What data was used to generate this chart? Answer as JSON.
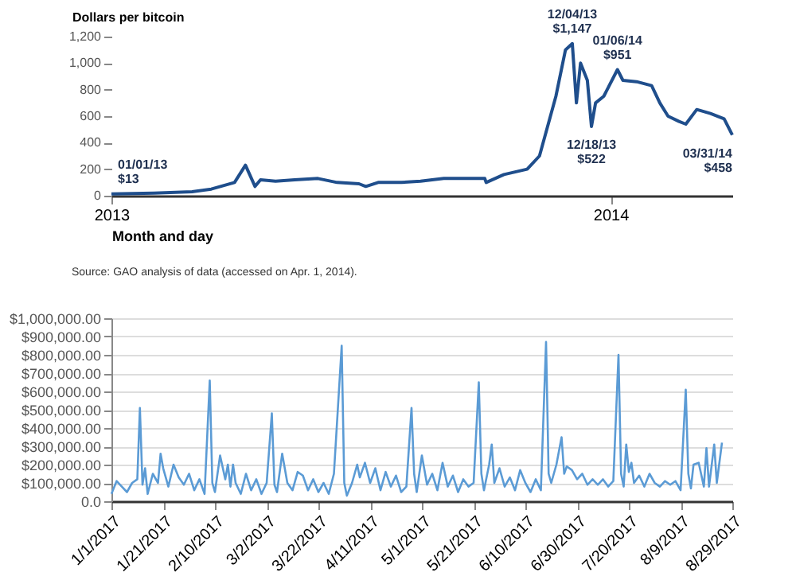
{
  "chart_data": [
    {
      "type": "line",
      "ylabel": "Dollars per bitcoin",
      "xlabel": "Month and day",
      "x": [
        "2013-01-01",
        "2013-02-01",
        "2013-03-01",
        "2013-03-15",
        "2013-04-01",
        "2013-04-09",
        "2013-04-16",
        "2013-04-20",
        "2013-05-01",
        "2013-05-15",
        "2013-06-01",
        "2013-06-15",
        "2013-07-01",
        "2013-07-06",
        "2013-07-15",
        "2013-08-01",
        "2013-08-15",
        "2013-09-01",
        "2013-09-15",
        "2013-10-01",
        "2013-10-02",
        "2013-10-15",
        "2013-11-01",
        "2013-11-10",
        "2013-11-18",
        "2013-11-22",
        "2013-11-29",
        "2013-12-04",
        "2013-12-07",
        "2013-12-10",
        "2013-12-15",
        "2013-12-18",
        "2013-12-21",
        "2013-12-27",
        "2014-01-06",
        "2014-01-10",
        "2014-01-20",
        "2014-01-31",
        "2014-02-06",
        "2014-02-12",
        "2014-02-20",
        "2014-02-25",
        "2014-03-05",
        "2014-03-15",
        "2014-03-25",
        "2014-03-31"
      ],
      "series": [
        {
          "color": "#1f4e8c",
          "values": [
            13,
            20,
            30,
            50,
            100,
            230,
            70,
            120,
            110,
            120,
            130,
            100,
            90,
            70,
            100,
            100,
            110,
            130,
            130,
            130,
            100,
            160,
            200,
            300,
            600,
            750,
            1100,
            1147,
            700,
            1000,
            870,
            522,
            700,
            750,
            951,
            870,
            860,
            830,
            700,
            600,
            560,
            540,
            650,
            620,
            580,
            458
          ]
        }
      ],
      "xlim": [
        "2013-01-01",
        "2014-03-31"
      ],
      "xticks": [
        {
          "value": "2013-01-01",
          "label": "2013"
        },
        {
          "value": "2014-01-01",
          "label": "2014"
        }
      ],
      "ylim": [
        0,
        1200
      ],
      "yticks": [
        0,
        200,
        400,
        600,
        800,
        {
          "value": 1000,
          "label": "1,000"
        },
        {
          "value": 1200,
          "label": "1,200"
        }
      ],
      "grid": false,
      "annotations": [
        {
          "text": "01/01/13\n$13",
          "x": "2013-01-01",
          "y": 13
        },
        {
          "text": "12/04/13\n$1,147",
          "x": "2013-12-04",
          "y": 1147
        },
        {
          "text": "12/18/13\n$522",
          "x": "2013-12-18",
          "y": 522
        },
        {
          "text": "01/06/14\n$951",
          "x": "2014-01-06",
          "y": 951
        },
        {
          "text": "03/31/14\n$458",
          "x": "2014-03-31",
          "y": 458
        },
        "Source: GAO analysis of data (accessed on Apr. 1, 2014)."
      ]
    },
    {
      "type": "line",
      "x": [
        "2017-01-01",
        "2017-01-03",
        "2017-01-05",
        "2017-01-07",
        "2017-01-09",
        "2017-01-11",
        "2017-01-12",
        "2017-01-13",
        "2017-01-14",
        "2017-01-15",
        "2017-01-17",
        "2017-01-19",
        "2017-01-20",
        "2017-01-21",
        "2017-01-23",
        "2017-01-25",
        "2017-01-27",
        "2017-01-29",
        "2017-01-31",
        "2017-02-02",
        "2017-02-04",
        "2017-02-06",
        "2017-02-08",
        "2017-02-09",
        "2017-02-10",
        "2017-02-12",
        "2017-02-14",
        "2017-02-15",
        "2017-02-16",
        "2017-02-17",
        "2017-02-18",
        "2017-02-20",
        "2017-02-22",
        "2017-02-24",
        "2017-02-26",
        "2017-02-28",
        "2017-03-02",
        "2017-03-04",
        "2017-03-05",
        "2017-03-06",
        "2017-03-08",
        "2017-03-10",
        "2017-03-12",
        "2017-03-14",
        "2017-03-16",
        "2017-03-18",
        "2017-03-20",
        "2017-03-22",
        "2017-03-24",
        "2017-03-26",
        "2017-03-28",
        "2017-03-31",
        "2017-04-01",
        "2017-04-02",
        "2017-04-04",
        "2017-04-06",
        "2017-04-07",
        "2017-04-09",
        "2017-04-11",
        "2017-04-13",
        "2017-04-15",
        "2017-04-17",
        "2017-04-19",
        "2017-04-21",
        "2017-04-23",
        "2017-04-25",
        "2017-04-27",
        "2017-04-28",
        "2017-04-29",
        "2017-05-01",
        "2017-05-03",
        "2017-05-05",
        "2017-05-07",
        "2017-05-09",
        "2017-05-11",
        "2017-05-13",
        "2017-05-15",
        "2017-05-17",
        "2017-05-19",
        "2017-05-21",
        "2017-05-23",
        "2017-05-24",
        "2017-05-25",
        "2017-05-27",
        "2017-05-28",
        "2017-05-29",
        "2017-05-31",
        "2017-06-02",
        "2017-06-04",
        "2017-06-06",
        "2017-06-08",
        "2017-06-10",
        "2017-06-12",
        "2017-06-14",
        "2017-06-16",
        "2017-06-18",
        "2017-06-19",
        "2017-06-20",
        "2017-06-22",
        "2017-06-24",
        "2017-06-25",
        "2017-06-26",
        "2017-06-28",
        "2017-06-30",
        "2017-07-02",
        "2017-07-04",
        "2017-07-06",
        "2017-07-08",
        "2017-07-10",
        "2017-07-12",
        "2017-07-14",
        "2017-07-16",
        "2017-07-17",
        "2017-07-18",
        "2017-07-19",
        "2017-07-20",
        "2017-07-21",
        "2017-07-22",
        "2017-07-24",
        "2017-07-26",
        "2017-07-28",
        "2017-07-30",
        "2017-08-01",
        "2017-08-03",
        "2017-08-05",
        "2017-08-07",
        "2017-08-09",
        "2017-08-11",
        "2017-08-12",
        "2017-08-13",
        "2017-08-14",
        "2017-08-16",
        "2017-08-18",
        "2017-08-19",
        "2017-08-20",
        "2017-08-22",
        "2017-08-23",
        "2017-08-25"
      ],
      "series": [
        {
          "color": "#5b9bd5",
          "values": [
            40000,
            110000,
            80000,
            50000,
            100000,
            120000,
            510000,
            90000,
            180000,
            40000,
            150000,
            100000,
            260000,
            180000,
            80000,
            200000,
            130000,
            90000,
            150000,
            60000,
            120000,
            40000,
            660000,
            100000,
            50000,
            250000,
            120000,
            200000,
            80000,
            200000,
            100000,
            40000,
            150000,
            60000,
            120000,
            40000,
            100000,
            480000,
            90000,
            50000,
            260000,
            100000,
            60000,
            160000,
            140000,
            60000,
            120000,
            50000,
            100000,
            40000,
            150000,
            850000,
            100000,
            30000,
            100000,
            200000,
            130000,
            210000,
            100000,
            180000,
            60000,
            160000,
            80000,
            140000,
            50000,
            80000,
            510000,
            150000,
            50000,
            250000,
            90000,
            150000,
            60000,
            210000,
            80000,
            140000,
            50000,
            120000,
            80000,
            100000,
            650000,
            150000,
            60000,
            200000,
            310000,
            100000,
            180000,
            80000,
            130000,
            60000,
            170000,
            100000,
            50000,
            120000,
            60000,
            870000,
            150000,
            100000,
            200000,
            350000,
            150000,
            190000,
            170000,
            120000,
            150000,
            90000,
            120000,
            90000,
            120000,
            80000,
            110000,
            800000,
            150000,
            80000,
            310000,
            160000,
            210000,
            100000,
            140000,
            80000,
            150000,
            100000,
            80000,
            110000,
            90000,
            110000,
            60000,
            610000,
            150000,
            70000,
            200000,
            210000,
            80000,
            290000,
            80000,
            310000,
            100000,
            320000
          ]
        }
      ],
      "xlim": [
        "2017-01-01",
        "2017-08-29"
      ],
      "xticks": [
        {
          "value": "2017-01-01",
          "label": "1/1/2017"
        },
        {
          "value": "2017-01-21",
          "label": "1/21/2017"
        },
        {
          "value": "2017-02-10",
          "label": "2/10/2017"
        },
        {
          "value": "2017-03-02",
          "label": "3/2/2017"
        },
        {
          "value": "2017-03-22",
          "label": "3/22/2017"
        },
        {
          "value": "2017-04-11",
          "label": "4/11/2017"
        },
        {
          "value": "2017-05-01",
          "label": "5/1/2017"
        },
        {
          "value": "2017-05-21",
          "label": "5/21/2017"
        },
        {
          "value": "2017-06-10",
          "label": "6/10/2017"
        },
        {
          "value": "2017-06-30",
          "label": "6/30/2017"
        },
        {
          "value": "2017-07-20",
          "label": "7/20/2017"
        },
        {
          "value": "2017-08-09",
          "label": "8/9/2017"
        },
        {
          "value": "2017-08-29",
          "label": "8/29/2017"
        }
      ],
      "ylim": [
        0,
        1000000
      ],
      "yticks": [
        {
          "value": 0,
          "label": "0.0"
        },
        {
          "value": 100000,
          "label": "$100,000.00"
        },
        {
          "value": 200000,
          "label": "$200,000.00"
        },
        {
          "value": 300000,
          "label": "$300,000.00"
        },
        {
          "value": 400000,
          "label": "$400,000.00"
        },
        {
          "value": 500000,
          "label": "$500,000.00"
        },
        {
          "value": 600000,
          "label": "$600,000.00"
        },
        {
          "value": 700000,
          "label": "$700,000.00"
        },
        {
          "value": 800000,
          "label": "$800,000.00"
        },
        {
          "value": 900000,
          "label": "$900,000.00"
        },
        {
          "value": 1000000,
          "label": "$1,000,000.00"
        }
      ],
      "grid": "y"
    }
  ]
}
